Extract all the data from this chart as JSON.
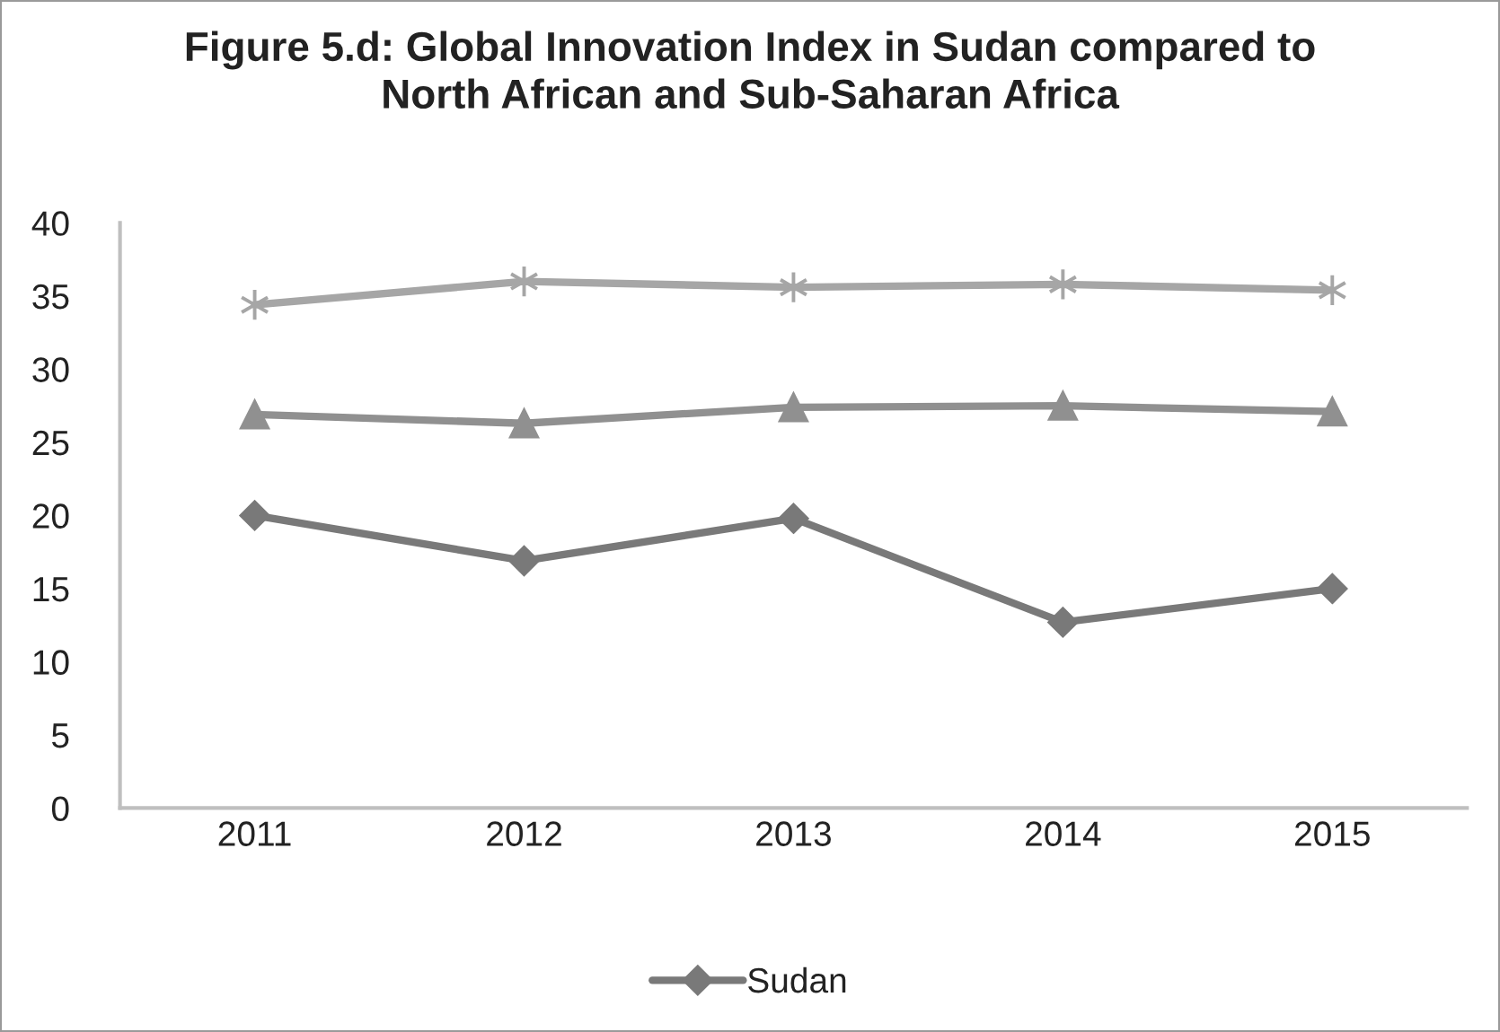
{
  "chart_data": {
    "type": "line",
    "title": "Figure 5.d: Global Innovation Index in Sudan compared to\nNorth African and Sub-Saharan Africa",
    "categories": [
      "2011",
      "2012",
      "2013",
      "2014",
      "2015"
    ],
    "series": [
      {
        "name": "Sudan",
        "color": "#797979",
        "marker": "diamond",
        "values": [
          20.0,
          16.9,
          19.8,
          12.7,
          15.0
        ]
      },
      {
        "color": "#909090",
        "marker": "triangle",
        "values": [
          26.9,
          26.3,
          27.4,
          27.5,
          27.1
        ]
      },
      {
        "color": "#a6a6a6",
        "marker": "cross",
        "values": [
          34.4,
          36.0,
          35.6,
          35.8,
          35.4
        ]
      }
    ],
    "ylim": [
      0,
      40
    ],
    "yticks": [
      0,
      5,
      10,
      15,
      20,
      25,
      30,
      35,
      40
    ],
    "grid": false,
    "legend": "bottom"
  }
}
